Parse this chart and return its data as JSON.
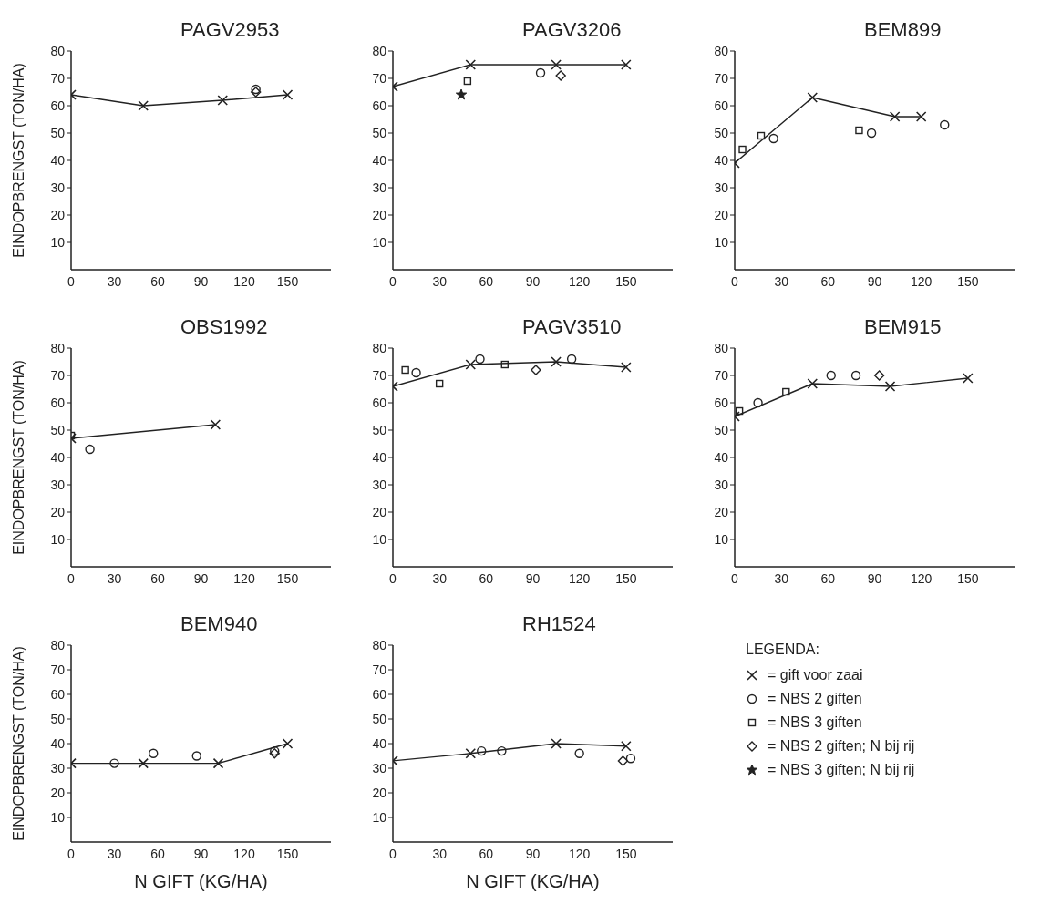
{
  "chart_data": [
    {
      "type": "line",
      "title": "PAGV2953",
      "ylabel": "EINDOPBRENGST (TON/HA)",
      "xlim": [
        0,
        180
      ],
      "ylim": [
        0,
        80
      ],
      "xticks": [
        0,
        30,
        60,
        90,
        120,
        150
      ],
      "yticks": [
        10,
        20,
        30,
        40,
        50,
        60,
        70,
        80
      ],
      "series": [
        {
          "type": "line",
          "marker": "cross",
          "color": "#222222",
          "x": [
            0,
            50,
            105,
            150
          ],
          "values": [
            64,
            60,
            62,
            64
          ]
        },
        {
          "type": "scatter",
          "marker": "circle",
          "color": "#222222",
          "x": [
            128
          ],
          "values": [
            66
          ]
        },
        {
          "type": "scatter",
          "marker": "diamond",
          "color": "#222222",
          "x": [
            128
          ],
          "values": [
            65
          ]
        }
      ]
    },
    {
      "type": "line",
      "title": "PAGV3206",
      "xlim": [
        0,
        180
      ],
      "ylim": [
        0,
        80
      ],
      "xticks": [
        0,
        30,
        60,
        90,
        120,
        150
      ],
      "yticks": [
        10,
        20,
        30,
        40,
        50,
        60,
        70,
        80
      ],
      "series": [
        {
          "type": "line",
          "marker": "cross",
          "color": "#222222",
          "x": [
            0,
            50,
            105,
            150
          ],
          "values": [
            67,
            75,
            75,
            75
          ]
        },
        {
          "type": "scatter",
          "marker": "square",
          "color": "#222222",
          "x": [
            48
          ],
          "values": [
            69
          ]
        },
        {
          "type": "scatter",
          "marker": "circle",
          "color": "#222222",
          "x": [
            95
          ],
          "values": [
            72
          ]
        },
        {
          "type": "scatter",
          "marker": "diamond",
          "color": "#222222",
          "x": [
            108
          ],
          "values": [
            71
          ]
        },
        {
          "type": "scatter",
          "marker": "star",
          "color": "#222222",
          "x": [
            44
          ],
          "values": [
            64
          ]
        }
      ]
    },
    {
      "type": "line",
      "title": "BEM899",
      "xlim": [
        0,
        180
      ],
      "ylim": [
        0,
        80
      ],
      "xticks": [
        0,
        30,
        60,
        90,
        120,
        150
      ],
      "yticks": [
        10,
        20,
        30,
        40,
        50,
        60,
        70,
        80
      ],
      "series": [
        {
          "type": "line",
          "marker": "cross",
          "color": "#222222",
          "x": [
            0,
            50,
            103,
            120
          ],
          "values": [
            39,
            63,
            56,
            56
          ]
        },
        {
          "type": "scatter",
          "marker": "circle",
          "color": "#222222",
          "x": [
            25,
            88,
            135
          ],
          "values": [
            48,
            50,
            53
          ]
        },
        {
          "type": "scatter",
          "marker": "square",
          "color": "#222222",
          "x": [
            5,
            17,
            80
          ],
          "values": [
            44,
            49,
            51
          ]
        }
      ]
    },
    {
      "type": "line",
      "title": "OBS1992",
      "ylabel": "EINDOPBRENGST (TON/HA)",
      "xlim": [
        0,
        180
      ],
      "ylim": [
        0,
        80
      ],
      "xticks": [
        0,
        30,
        60,
        90,
        120,
        150
      ],
      "yticks": [
        10,
        20,
        30,
        40,
        50,
        60,
        70,
        80
      ],
      "series": [
        {
          "type": "line",
          "marker": "cross",
          "color": "#222222",
          "x": [
            0,
            100
          ],
          "values": [
            47,
            52
          ]
        },
        {
          "type": "scatter",
          "marker": "circle",
          "color": "#222222",
          "x": [
            13
          ],
          "values": [
            43
          ]
        },
        {
          "type": "scatter",
          "marker": "square",
          "color": "#222222",
          "x": [
            0
          ],
          "values": [
            48
          ]
        }
      ]
    },
    {
      "type": "line",
      "title": "PAGV3510",
      "xlim": [
        0,
        180
      ],
      "ylim": [
        0,
        80
      ],
      "xticks": [
        0,
        30,
        60,
        90,
        120,
        150
      ],
      "yticks": [
        10,
        20,
        30,
        40,
        50,
        60,
        70,
        80
      ],
      "series": [
        {
          "type": "line",
          "marker": "cross",
          "color": "#222222",
          "x": [
            0,
            50,
            105,
            150
          ],
          "values": [
            66,
            74,
            75,
            73
          ]
        },
        {
          "type": "scatter",
          "marker": "circle",
          "color": "#222222",
          "x": [
            15,
            56,
            115
          ],
          "values": [
            71,
            76,
            76
          ]
        },
        {
          "type": "scatter",
          "marker": "square",
          "color": "#222222",
          "x": [
            8,
            30,
            72
          ],
          "values": [
            72,
            67,
            74
          ]
        },
        {
          "type": "scatter",
          "marker": "diamond",
          "color": "#222222",
          "x": [
            92
          ],
          "values": [
            72
          ]
        }
      ]
    },
    {
      "type": "line",
      "title": "BEM915",
      "xlim": [
        0,
        180
      ],
      "ylim": [
        0,
        80
      ],
      "xticks": [
        0,
        30,
        60,
        90,
        120,
        150
      ],
      "yticks": [
        10,
        20,
        30,
        40,
        50,
        60,
        70,
        80
      ],
      "series": [
        {
          "type": "line",
          "marker": "cross",
          "color": "#222222",
          "x": [
            0,
            50,
            100,
            150
          ],
          "values": [
            55,
            67,
            66,
            69
          ]
        },
        {
          "type": "scatter",
          "marker": "circle",
          "color": "#222222",
          "x": [
            15,
            62,
            78
          ],
          "values": [
            60,
            70,
            70
          ]
        },
        {
          "type": "scatter",
          "marker": "square",
          "color": "#222222",
          "x": [
            3,
            33
          ],
          "values": [
            57,
            64
          ]
        },
        {
          "type": "scatter",
          "marker": "diamond",
          "color": "#222222",
          "x": [
            93
          ],
          "values": [
            70
          ]
        }
      ]
    },
    {
      "type": "line",
      "title": "BEM940",
      "ylabel": "EINDOPBRENGST (TON/HA)",
      "xlabel": "N GIFT (KG/HA)",
      "xlim": [
        0,
        180
      ],
      "ylim": [
        0,
        80
      ],
      "xticks": [
        0,
        30,
        60,
        90,
        120,
        150
      ],
      "yticks": [
        10,
        20,
        30,
        40,
        50,
        60,
        70,
        80
      ],
      "series": [
        {
          "type": "line",
          "marker": "cross",
          "color": "#222222",
          "x": [
            0,
            50,
            102,
            150
          ],
          "values": [
            32,
            32,
            32,
            40
          ]
        },
        {
          "type": "scatter",
          "marker": "circle",
          "color": "#222222",
          "x": [
            30,
            57,
            87,
            141
          ],
          "values": [
            32,
            36,
            35,
            37
          ]
        },
        {
          "type": "scatter",
          "marker": "diamond",
          "color": "#222222",
          "x": [
            141
          ],
          "values": [
            36
          ]
        }
      ]
    },
    {
      "type": "line",
      "title": "RH1524",
      "xlabel": "N GIFT (KG/HA)",
      "xlim": [
        0,
        180
      ],
      "ylim": [
        0,
        80
      ],
      "xticks": [
        0,
        30,
        60,
        90,
        120,
        150
      ],
      "yticks": [
        10,
        20,
        30,
        40,
        50,
        60,
        70,
        80
      ],
      "series": [
        {
          "type": "line",
          "marker": "cross",
          "color": "#222222",
          "x": [
            0,
            50,
            105,
            150
          ],
          "values": [
            33,
            36,
            40,
            39
          ]
        },
        {
          "type": "scatter",
          "marker": "circle",
          "color": "#222222",
          "x": [
            57,
            70,
            120,
            153
          ],
          "values": [
            37,
            37,
            36,
            34
          ]
        },
        {
          "type": "scatter",
          "marker": "diamond",
          "color": "#222222",
          "x": [
            148
          ],
          "values": [
            33
          ]
        }
      ]
    },
    {
      "type": "other",
      "title": "LEGENDA:",
      "annotations": [
        "= gift voor zaai",
        "= NBS 2 giften",
        "= NBS 3 giften",
        "= NBS 2 giften; N bij rij",
        "= NBS 3 giften; N bij rij"
      ]
    }
  ]
}
